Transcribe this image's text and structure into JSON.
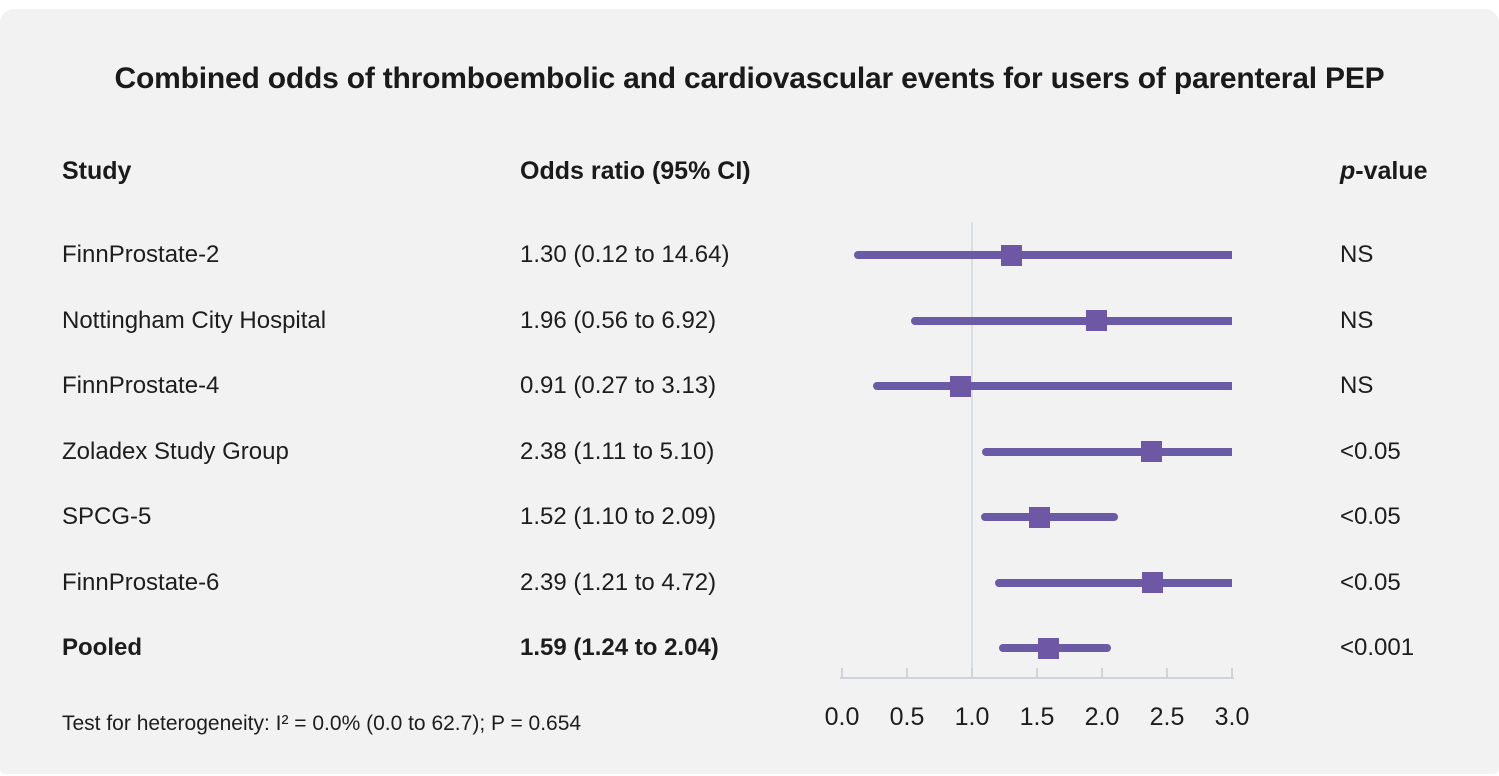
{
  "title": "Combined odds of thromboembolic and cardiovascular events for users of parenteral PEP",
  "columns": {
    "study": "Study",
    "odds_ratio": "Odds ratio (95% CI)",
    "p_value_prefix": "p",
    "p_value_suffix": "-value"
  },
  "footnote": "Test for heterogeneity: I² = 0.0% (0.0 to 62.7); P = 0.654",
  "chart_data": {
    "type": "forest",
    "title": "Combined odds of thromboembolic and cardiovascular events for users of parenteral PEP",
    "x_range": [
      0.0,
      3.0
    ],
    "x_ticks": [
      "0.0",
      "0.5",
      "1.0",
      "1.5",
      "2.0",
      "2.5",
      "3.0"
    ],
    "reference_line_x": 1.0,
    "rows": [
      {
        "study": "FinnProstate-2",
        "or": 1.3,
        "ci_low": 0.12,
        "ci_high": 14.64,
        "or_text": "1.30 (0.12 to 14.64)",
        "p": "NS",
        "bold": false
      },
      {
        "study": "Nottingham City Hospital",
        "or": 1.96,
        "ci_low": 0.56,
        "ci_high": 6.92,
        "or_text": "1.96 (0.56 to 6.92)",
        "p": "NS",
        "bold": false
      },
      {
        "study": "FinnProstate-4",
        "or": 0.91,
        "ci_low": 0.27,
        "ci_high": 3.13,
        "or_text": "0.91 (0.27 to 3.13)",
        "p": "NS",
        "bold": false
      },
      {
        "study": "Zoladex Study Group",
        "or": 2.38,
        "ci_low": 1.11,
        "ci_high": 5.1,
        "or_text": "2.38 (1.11 to 5.10)",
        "p": "<0.05",
        "bold": false
      },
      {
        "study": "SPCG-5",
        "or": 1.52,
        "ci_low": 1.1,
        "ci_high": 2.09,
        "or_text": "1.52 (1.10 to 2.09)",
        "p": "<0.05",
        "bold": false
      },
      {
        "study": "FinnProstate-6",
        "or": 2.39,
        "ci_low": 1.21,
        "ci_high": 4.72,
        "or_text": "2.39 (1.21 to 4.72)",
        "p": "<0.05",
        "bold": false
      },
      {
        "study": "Pooled",
        "or": 1.59,
        "ci_low": 1.24,
        "ci_high": 2.04,
        "or_text": "1.59 (1.24 to 2.04)",
        "p": "<0.001",
        "bold": true
      }
    ],
    "colors": {
      "line": "#6b5ba7",
      "marker": "#6e57a5",
      "reference_line": "#d9dee3",
      "axis": "#ced4da",
      "background": "#f2f2f3",
      "text": "#1d1d1d"
    }
  }
}
